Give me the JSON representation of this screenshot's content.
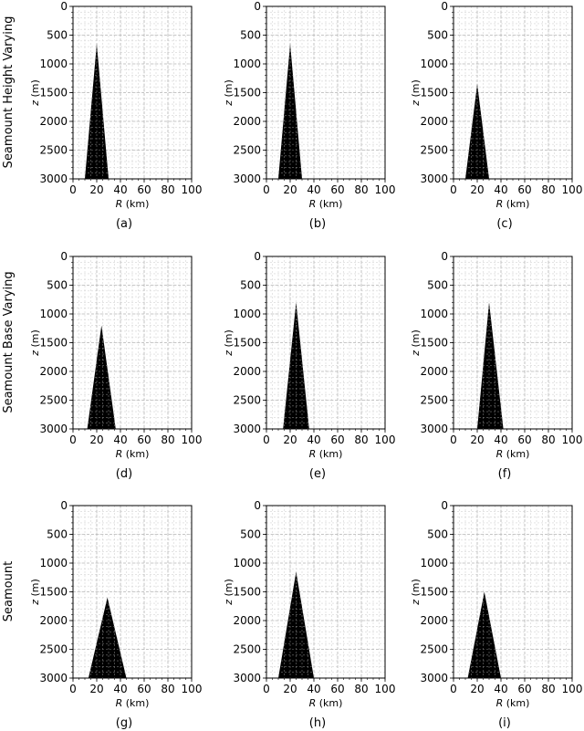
{
  "row_labels": [
    "Seamount Height Varying",
    "Seamount Base Varying",
    "Seamount"
  ],
  "chart_data": [
    {
      "panel": "(a)",
      "type": "area",
      "xlabel_main": "R",
      "xlabel_unit": " (km)",
      "ylabel_main": "z",
      "ylabel_unit": " (m)",
      "xlim": [
        0,
        100
      ],
      "ylim": [
        3000,
        0
      ],
      "x_ticks": [
        0,
        20,
        40,
        60,
        80,
        100
      ],
      "y_ticks": [
        0,
        500,
        1000,
        1500,
        2000,
        2500,
        3000
      ],
      "grid": true,
      "polygon": {
        "x": [
          10,
          20,
          30
        ],
        "y": [
          3000,
          650,
          3000
        ]
      }
    },
    {
      "panel": "(b)",
      "type": "area",
      "xlabel_main": "R",
      "xlabel_unit": " (km)",
      "ylabel_main": "z",
      "ylabel_unit": " (m)",
      "xlim": [
        0,
        100
      ],
      "ylim": [
        3000,
        0
      ],
      "x_ticks": [
        0,
        20,
        40,
        60,
        80,
        100
      ],
      "y_ticks": [
        0,
        500,
        1000,
        1500,
        2000,
        2500,
        3000
      ],
      "grid": true,
      "polygon": {
        "x": [
          10,
          20,
          30
        ],
        "y": [
          3000,
          650,
          3000
        ]
      }
    },
    {
      "panel": "(c)",
      "type": "area",
      "xlabel_main": "R",
      "xlabel_unit": " (km)",
      "ylabel_main": "z",
      "ylabel_unit": " (m)",
      "xlim": [
        0,
        100
      ],
      "ylim": [
        3000,
        0
      ],
      "x_ticks": [
        0,
        20,
        40,
        60,
        80,
        100
      ],
      "y_ticks": [
        0,
        500,
        1000,
        1500,
        2000,
        2500,
        3000
      ],
      "grid": true,
      "polygon": {
        "x": [
          10,
          20,
          30
        ],
        "y": [
          3000,
          1350,
          3000
        ]
      }
    },
    {
      "panel": "(d)",
      "type": "area",
      "xlabel_main": "R",
      "xlabel_unit": " (km)",
      "ylabel_main": "z",
      "ylabel_unit": " (m)",
      "xlim": [
        0,
        100
      ],
      "ylim": [
        3000,
        0
      ],
      "x_ticks": [
        0,
        20,
        40,
        60,
        80,
        100
      ],
      "y_ticks": [
        0,
        500,
        1000,
        1500,
        2000,
        2500,
        3000
      ],
      "grid": true,
      "polygon": {
        "x": [
          12,
          24,
          36
        ],
        "y": [
          3000,
          1200,
          3000
        ]
      }
    },
    {
      "panel": "(e)",
      "type": "area",
      "xlabel_main": "R",
      "xlabel_unit": " (km)",
      "ylabel_main": "z",
      "ylabel_unit": " (m)",
      "xlim": [
        0,
        100
      ],
      "ylim": [
        3000,
        0
      ],
      "x_ticks": [
        0,
        20,
        40,
        60,
        80,
        100
      ],
      "y_ticks": [
        0,
        500,
        1000,
        1500,
        2000,
        2500,
        3000
      ],
      "grid": true,
      "polygon": {
        "x": [
          14,
          25,
          36
        ],
        "y": [
          3000,
          800,
          3000
        ]
      }
    },
    {
      "panel": "(f)",
      "type": "area",
      "xlabel_main": "R",
      "xlabel_unit": " (km)",
      "ylabel_main": "z",
      "ylabel_unit": " (m)",
      "xlim": [
        0,
        100
      ],
      "ylim": [
        3000,
        0
      ],
      "x_ticks": [
        0,
        20,
        40,
        60,
        80,
        100
      ],
      "y_ticks": [
        0,
        500,
        1000,
        1500,
        2000,
        2500,
        3000
      ],
      "grid": true,
      "polygon": {
        "x": [
          20,
          30,
          42
        ],
        "y": [
          3000,
          800,
          3000
        ]
      }
    },
    {
      "panel": "(g)",
      "type": "area",
      "xlabel_main": "R",
      "xlabel_unit": " (km)",
      "ylabel_main": "z",
      "ylabel_unit": " (m)",
      "xlim": [
        0,
        100
      ],
      "ylim": [
        3000,
        0
      ],
      "x_ticks": [
        0,
        20,
        40,
        60,
        80,
        100
      ],
      "y_ticks": [
        0,
        500,
        1000,
        1500,
        2000,
        2500,
        3000
      ],
      "grid": true,
      "polygon": {
        "x": [
          13,
          29,
          45
        ],
        "y": [
          3000,
          1600,
          3000
        ]
      }
    },
    {
      "panel": "(h)",
      "type": "area",
      "xlabel_main": "R",
      "xlabel_unit": " (km)",
      "ylabel_main": "z",
      "ylabel_unit": " (m)",
      "xlim": [
        0,
        100
      ],
      "ylim": [
        3000,
        0
      ],
      "x_ticks": [
        0,
        20,
        40,
        60,
        80,
        100
      ],
      "y_ticks": [
        0,
        500,
        1000,
        1500,
        2000,
        2500,
        3000
      ],
      "grid": true,
      "polygon": {
        "x": [
          10,
          25,
          40
        ],
        "y": [
          3000,
          1150,
          3000
        ]
      }
    },
    {
      "panel": "(i)",
      "type": "area",
      "xlabel_main": "R",
      "xlabel_unit": " (km)",
      "ylabel_main": "z",
      "ylabel_unit": " (m)",
      "xlim": [
        0,
        100
      ],
      "ylim": [
        3000,
        0
      ],
      "x_ticks": [
        0,
        20,
        40,
        60,
        80,
        100
      ],
      "y_ticks": [
        0,
        500,
        1000,
        1500,
        2000,
        2500,
        3000
      ],
      "grid": true,
      "polygon": {
        "x": [
          12,
          26,
          40
        ],
        "y": [
          3000,
          1500,
          3000
        ]
      }
    }
  ]
}
